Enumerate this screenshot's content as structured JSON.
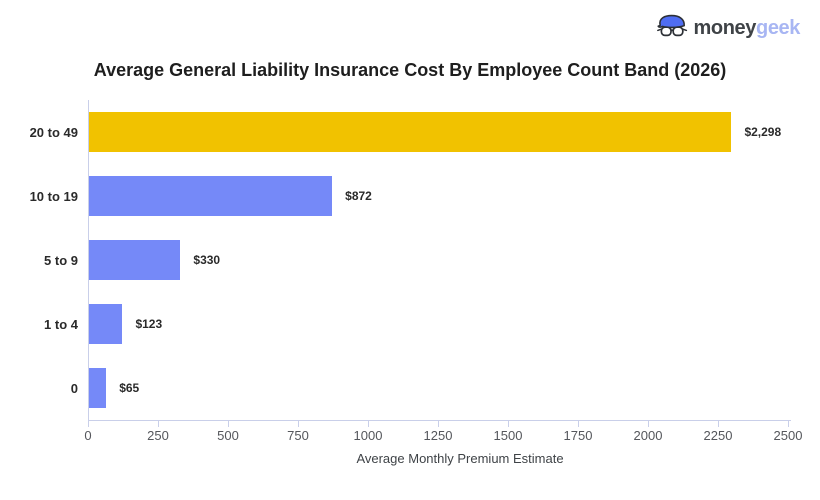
{
  "logo": {
    "money": "money",
    "geek": "geek",
    "icon": "geek-face-icon"
  },
  "title": "Average General Liability Insurance Cost By Employee Count Band (2026)",
  "chart_data": {
    "type": "bar",
    "orientation": "horizontal",
    "title": "Average General Liability Insurance Cost By Employee Count Band (2026)",
    "categories": [
      "20 to 49",
      "10 to 19",
      "5 to 9",
      "1 to 4",
      "0"
    ],
    "values": [
      2298,
      872,
      330,
      123,
      65
    ],
    "value_labels": [
      "$2,298",
      "$872",
      "$330",
      "$123",
      "$65"
    ],
    "xlabel": "Average Monthly Premium Estimate",
    "ylabel": "",
    "xlim": [
      0,
      2500
    ],
    "xticks": [
      0,
      250,
      500,
      750,
      1000,
      1250,
      1500,
      1750,
      2000,
      2250,
      2500
    ],
    "grid": false,
    "legend": "none",
    "bar_colors": [
      "#F1C200",
      "#7589F8",
      "#7589F8",
      "#7589F8",
      "#7589F8"
    ]
  },
  "colors": {
    "bar_highlight": "#F1C200",
    "bar_default": "#7589F8",
    "axis_line": "#C9CFE9",
    "tick_label": "#55575C",
    "title_text": "#1E1E1E",
    "logo_money": "#3F4347",
    "logo_geek": "#A8B6F3",
    "logo_hair": "#4F6DF2",
    "background": "#FFFFFF"
  }
}
